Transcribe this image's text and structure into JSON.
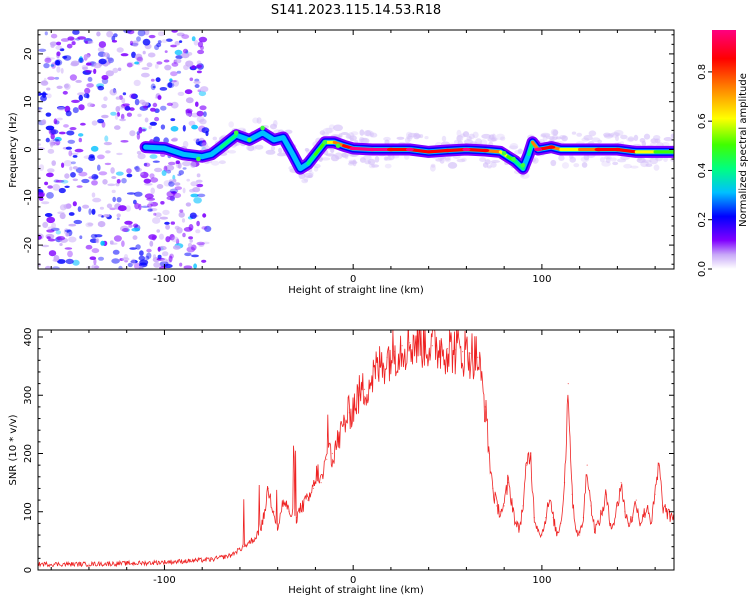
{
  "title": "S141.2023.115.14.53.R18",
  "chart_data": [
    {
      "type": "heatmap",
      "xlabel": "Height of straight line (km)",
      "ylabel": "Frequency (Hz)",
      "xlim": [
        -167,
        170
      ],
      "ylim": [
        -25,
        25
      ],
      "xticks": [
        -100,
        0,
        100
      ],
      "yticks": [
        -20,
        -10,
        0,
        10,
        20
      ],
      "grid": false,
      "colorbar": {
        "label": "Normalized spectral amplitude",
        "range": [
          0.0,
          0.97
        ],
        "ticks": [
          "0.0",
          "0.2",
          "0.4",
          "0.6",
          "0.8"
        ],
        "colors": [
          "#ffffff",
          "#c8a8f8",
          "#8000ff",
          "#0000ff",
          "#00c0ff",
          "#00ff80",
          "#40ff00",
          "#ffff00",
          "#ff8000",
          "#ff0000",
          "#ff0080"
        ]
      },
      "noise_region_x": [
        -167,
        -77
      ],
      "ridge": [
        {
          "x": -110,
          "f": 0.5,
          "a": 0.2
        },
        {
          "x": -100,
          "f": 0.3,
          "a": 0.22
        },
        {
          "x": -90,
          "f": -1.0,
          "a": 0.3
        },
        {
          "x": -80,
          "f": -1.5,
          "a": 0.3
        },
        {
          "x": -75,
          "f": -1.0,
          "a": 0.3
        },
        {
          "x": -70,
          "f": 0.5,
          "a": 0.35
        },
        {
          "x": -62,
          "f": 3.0,
          "a": 0.35
        },
        {
          "x": -55,
          "f": 2.0,
          "a": 0.3
        },
        {
          "x": -48,
          "f": 3.5,
          "a": 0.3
        },
        {
          "x": -42,
          "f": 2.0,
          "a": 0.3
        },
        {
          "x": -37,
          "f": 2.5,
          "a": 0.3
        },
        {
          "x": -32,
          "f": -1.0,
          "a": 0.25
        },
        {
          "x": -28,
          "f": -4.0,
          "a": 0.25
        },
        {
          "x": -24,
          "f": -3.0,
          "a": 0.3
        },
        {
          "x": -20,
          "f": -1.0,
          "a": 0.4
        },
        {
          "x": -15,
          "f": 1.5,
          "a": 0.55
        },
        {
          "x": -10,
          "f": 1.5,
          "a": 0.6
        },
        {
          "x": -5,
          "f": 0.8,
          "a": 0.7
        },
        {
          "x": 0,
          "f": 0.2,
          "a": 0.9
        },
        {
          "x": 10,
          "f": 0.0,
          "a": 0.95
        },
        {
          "x": 20,
          "f": 0.0,
          "a": 0.85
        },
        {
          "x": 30,
          "f": 0.0,
          "a": 0.9
        },
        {
          "x": 40,
          "f": -0.5,
          "a": 0.75
        },
        {
          "x": 50,
          "f": -0.2,
          "a": 0.8
        },
        {
          "x": 60,
          "f": 0.0,
          "a": 0.9
        },
        {
          "x": 70,
          "f": -0.2,
          "a": 0.8
        },
        {
          "x": 78,
          "f": -0.5,
          "a": 0.7
        },
        {
          "x": 82,
          "f": -1.5,
          "a": 0.55
        },
        {
          "x": 86,
          "f": -2.5,
          "a": 0.45
        },
        {
          "x": 90,
          "f": -4.0,
          "a": 0.3
        },
        {
          "x": 93,
          "f": -1.0,
          "a": 0.35
        },
        {
          "x": 95,
          "f": 1.5,
          "a": 0.4
        },
        {
          "x": 98,
          "f": 0.0,
          "a": 0.9
        },
        {
          "x": 105,
          "f": 0.5,
          "a": 0.85
        },
        {
          "x": 110,
          "f": 0.0,
          "a": 0.6
        },
        {
          "x": 120,
          "f": 0.0,
          "a": 0.65
        },
        {
          "x": 130,
          "f": 0.0,
          "a": 0.8
        },
        {
          "x": 140,
          "f": 0.0,
          "a": 0.85
        },
        {
          "x": 150,
          "f": -0.5,
          "a": 0.7
        },
        {
          "x": 160,
          "f": -0.5,
          "a": 0.5
        },
        {
          "x": 170,
          "f": -0.5,
          "a": 0.45
        }
      ]
    },
    {
      "type": "line",
      "xlabel": "Height of straight line (km)",
      "ylabel": "SNR (10 * v/v)",
      "xlim": [
        -167,
        170
      ],
      "ylim": [
        0,
        412
      ],
      "xticks": [
        -100,
        0,
        100
      ],
      "yticks": [
        0,
        100,
        200,
        300,
        400
      ],
      "grid": false,
      "series": [
        {
          "color": "#ee2222",
          "x": [
            -167,
            -140,
            -110,
            -90,
            -75,
            -65,
            -58,
            -52,
            -48,
            -45,
            -42,
            -40,
            -37,
            -34,
            -30,
            -27,
            -24,
            -21,
            -19,
            -17,
            -14,
            -11,
            -8,
            -5,
            -2,
            0,
            3,
            6,
            10,
            14,
            18,
            22,
            26,
            30,
            34,
            38,
            42,
            46,
            50,
            54,
            58,
            62,
            66,
            70,
            72,
            74,
            76,
            78,
            80,
            82,
            84,
            86,
            88,
            90,
            92,
            94,
            96,
            98,
            100,
            102,
            104,
            106,
            108,
            110,
            112,
            114,
            116,
            118,
            120,
            122,
            124,
            126,
            128,
            130,
            132,
            134,
            136,
            138,
            140,
            142,
            144,
            146,
            148,
            150,
            152,
            154,
            156,
            158,
            160,
            162,
            164,
            166,
            168,
            170
          ],
          "values": [
            10,
            10,
            12,
            15,
            18,
            25,
            40,
            55,
            80,
            140,
            100,
            70,
            120,
            100,
            90,
            110,
            120,
            140,
            170,
            150,
            190,
            200,
            220,
            250,
            270,
            280,
            300,
            310,
            330,
            350,
            365,
            375,
            385,
            390,
            392,
            390,
            385,
            383,
            380,
            378,
            375,
            372,
            365,
            280,
            200,
            140,
            110,
            100,
            110,
            150,
            120,
            80,
            70,
            110,
            180,
            200,
            90,
            70,
            60,
            90,
            120,
            90,
            60,
            80,
            150,
            320,
            130,
            70,
            60,
            90,
            180,
            110,
            70,
            80,
            100,
            130,
            80,
            80,
            110,
            150,
            100,
            80,
            90,
            120,
            80,
            95,
            110,
            80,
            130,
            180,
            110,
            100,
            90,
            95
          ]
        }
      ]
    }
  ]
}
